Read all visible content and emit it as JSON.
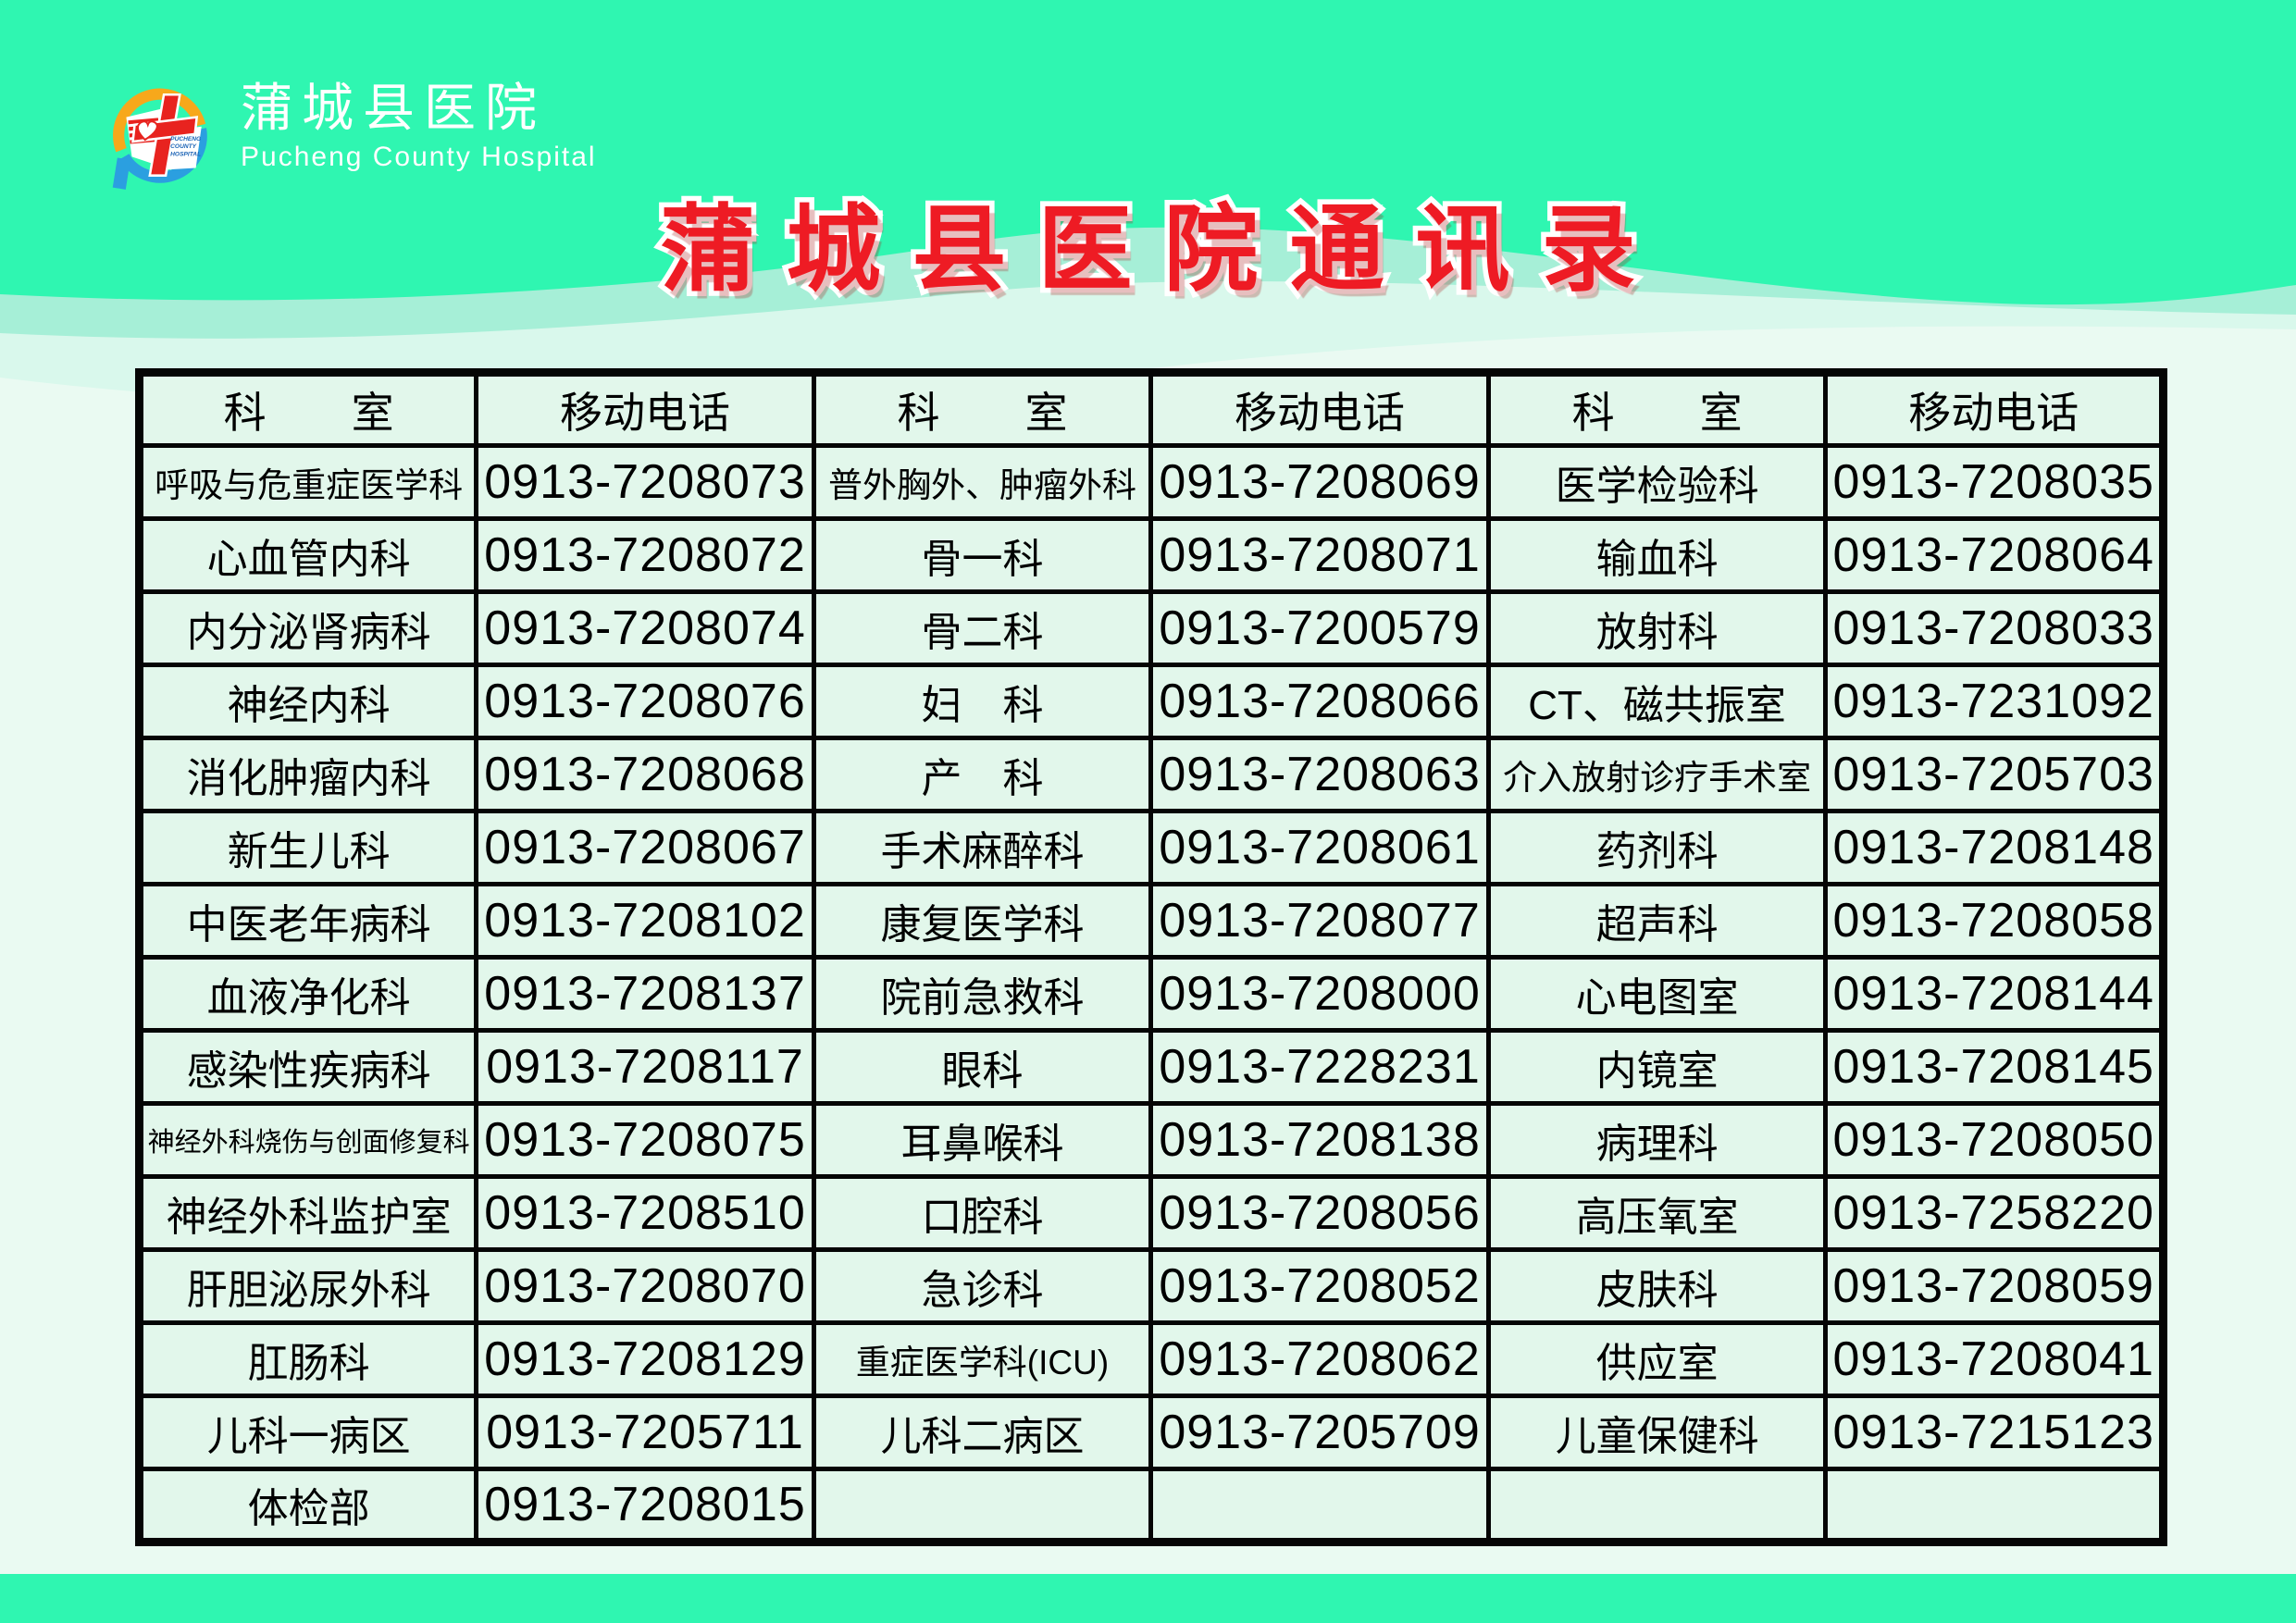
{
  "palette": {
    "teal": "#2FF6B1",
    "wave_mint": "#A6EFD7",
    "wave_pale": "#D9F8EC",
    "body_bg": "#EAFAF2",
    "cell_bg": "#E2F7EB",
    "title_red": "#EE1B24",
    "border_black": "#050505",
    "logo_orange": "#F7A81B",
    "logo_blue": "#2B9FE0",
    "logo_red": "#E8231F"
  },
  "logo": {
    "zh": "蒲城县医院",
    "en": "Pucheng County Hospital",
    "emblem_line1": "PUCHENG",
    "emblem_line2": "COUNTY",
    "emblem_line3": "HOSPITAL"
  },
  "title": "蒲城县医院通讯录",
  "table": {
    "dept_header": "科　　室",
    "phone_header": "移动电话",
    "groups": [
      {
        "rows": [
          {
            "dept": "呼吸与危重症医学科",
            "phone": "0913-7208073"
          },
          {
            "dept": "心血管内科",
            "phone": "0913-7208072"
          },
          {
            "dept": "内分泌肾病科",
            "phone": "0913-7208074"
          },
          {
            "dept": "神经内科",
            "phone": "0913-7208076"
          },
          {
            "dept": "消化肿瘤内科",
            "phone": "0913-7208068"
          },
          {
            "dept": "新生儿科",
            "phone": "0913-7208067"
          },
          {
            "dept": "中医老年病科",
            "phone": "0913-7208102"
          },
          {
            "dept": "血液净化科",
            "phone": "0913-7208137"
          },
          {
            "dept": "感染性疾病科",
            "phone": "0913-7208117"
          },
          {
            "dept": "神经外科烧伤与创面修复科",
            "phone": "0913-7208075"
          },
          {
            "dept": "神经外科监护室",
            "phone": "0913-7208510"
          },
          {
            "dept": "肝胆泌尿外科",
            "phone": "0913-7208070"
          },
          {
            "dept": "肛肠科",
            "phone": "0913-7208129"
          },
          {
            "dept": "儿科一病区",
            "phone": "0913-7205711"
          },
          {
            "dept": "体检部",
            "phone": "0913-7208015"
          }
        ]
      },
      {
        "rows": [
          {
            "dept": "普外胸外、肿瘤外科",
            "phone": "0913-7208069"
          },
          {
            "dept": "骨一科",
            "phone": "0913-7208071"
          },
          {
            "dept": "骨二科",
            "phone": "0913-7200579"
          },
          {
            "dept": "妇　科",
            "phone": "0913-7208066"
          },
          {
            "dept": "产　科",
            "phone": "0913-7208063"
          },
          {
            "dept": "手术麻醉科",
            "phone": "0913-7208061"
          },
          {
            "dept": "康复医学科",
            "phone": "0913-7208077"
          },
          {
            "dept": "院前急救科",
            "phone": "0913-7208000"
          },
          {
            "dept": "眼科",
            "phone": "0913-7228231"
          },
          {
            "dept": "耳鼻喉科",
            "phone": "0913-7208138"
          },
          {
            "dept": "口腔科",
            "phone": "0913-7208056"
          },
          {
            "dept": "急诊科",
            "phone": "0913-7208052"
          },
          {
            "dept": "重症医学科(ICU)",
            "phone": "0913-7208062"
          },
          {
            "dept": "儿科二病区",
            "phone": "0913-7205709"
          },
          {
            "dept": "",
            "phone": ""
          }
        ]
      },
      {
        "rows": [
          {
            "dept": "医学检验科",
            "phone": "0913-7208035"
          },
          {
            "dept": "输血科",
            "phone": "0913-7208064"
          },
          {
            "dept": "放射科",
            "phone": "0913-7208033"
          },
          {
            "dept": "CT、磁共振室",
            "phone": "0913-7231092"
          },
          {
            "dept": "介入放射诊疗手术室",
            "phone": "0913-7205703"
          },
          {
            "dept": "药剂科",
            "phone": "0913-7208148"
          },
          {
            "dept": "超声科",
            "phone": "0913-7208058"
          },
          {
            "dept": "心电图室",
            "phone": "0913-7208144"
          },
          {
            "dept": "内镜室",
            "phone": "0913-7208145"
          },
          {
            "dept": "病理科",
            "phone": "0913-7208050"
          },
          {
            "dept": "高压氧室",
            "phone": "0913-7258220"
          },
          {
            "dept": "皮肤科",
            "phone": "0913-7208059"
          },
          {
            "dept": "供应室",
            "phone": "0913-7208041"
          },
          {
            "dept": "儿童保健科",
            "phone": "0913-7215123"
          },
          {
            "dept": "",
            "phone": ""
          }
        ]
      }
    ]
  }
}
